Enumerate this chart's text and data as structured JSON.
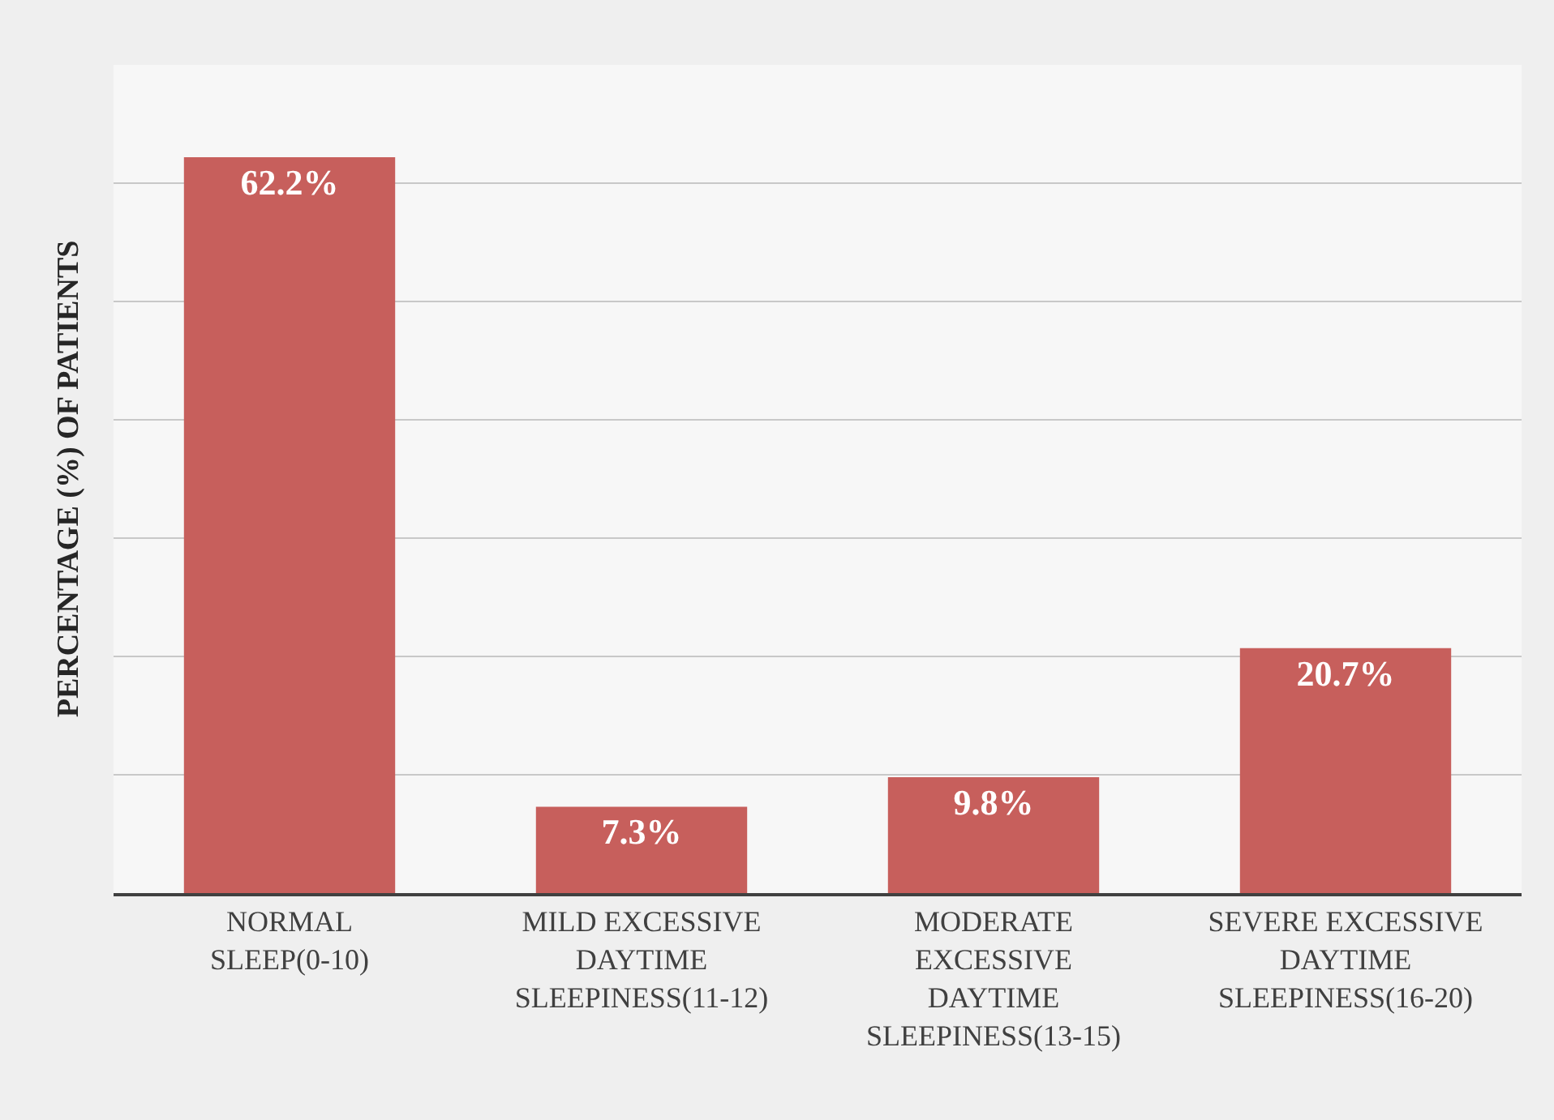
{
  "chart_data": {
    "type": "bar",
    "ylabel": "PERCENTAGE (%) OF PATIENTS",
    "categories": [
      "NORMAL SLEEP(0-10)",
      "MILD EXCESSIVE DAYTIME SLEEPINESS(11-12)",
      "MODERATE EXCESSIVE DAYTIME SLEEPINESS(13-15)",
      "SEVERE EXCESSIVE DAYTIME SLEEPINESS(16-20)"
    ],
    "values": [
      62.2,
      7.3,
      9.8,
      20.7
    ],
    "value_labels": [
      "62.2%",
      "7.3%",
      "9.8%",
      "20.7%"
    ],
    "color": "#c75f5c",
    "ylim": [
      0,
      70
    ],
    "yticks": [
      {
        "value": 0,
        "label": null
      },
      {
        "value": 10,
        "label": null
      },
      {
        "value": 20,
        "label": null
      },
      {
        "value": 30,
        "label": null
      },
      {
        "value": 40,
        "label": null
      },
      {
        "value": 50,
        "label": null
      },
      {
        "value": 60,
        "label": null
      },
      {
        "value": 70,
        "label": null
      }
    ],
    "grid": "y",
    "tick_labels": "x",
    "legend": false
  }
}
